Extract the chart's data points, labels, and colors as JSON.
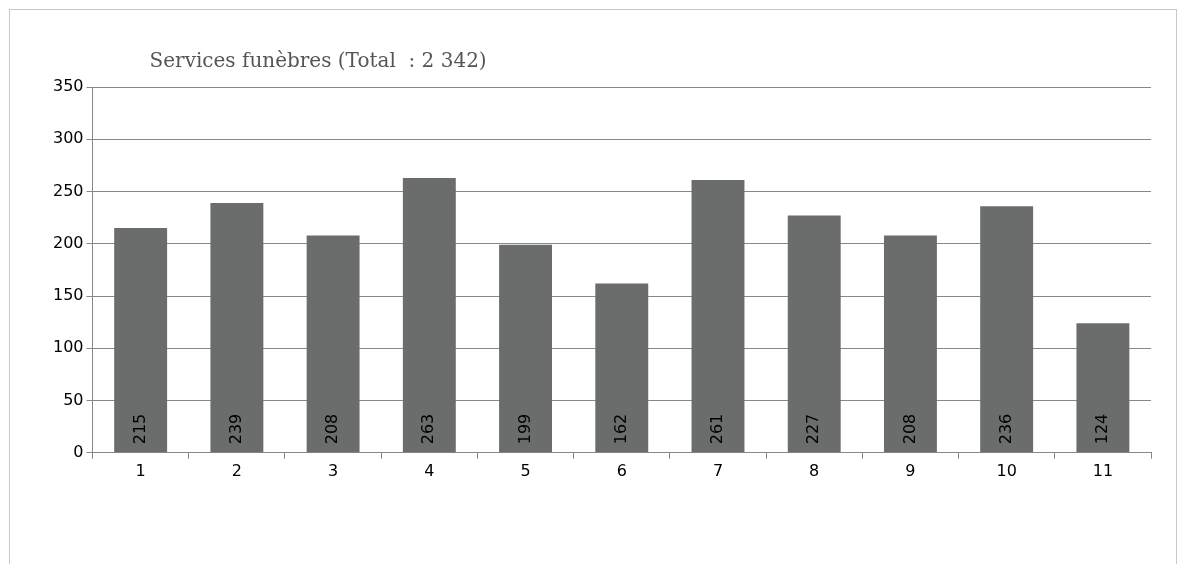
{
  "chart_data": {
    "type": "bar",
    "title": "Services funèbres (Total  : 2 342)",
    "categories": [
      "1",
      "2",
      "3",
      "4",
      "5",
      "6",
      "7",
      "8",
      "9",
      "10",
      "11"
    ],
    "values": [
      215,
      239,
      208,
      263,
      199,
      162,
      261,
      227,
      208,
      236,
      124
    ],
    "color": "#6b6d6d",
    "ylim": [
      0,
      350
    ],
    "yticks": [
      0,
      50,
      100,
      150,
      200,
      250,
      300,
      350
    ],
    "grid": "y",
    "data_labels": true,
    "legend": false
  }
}
